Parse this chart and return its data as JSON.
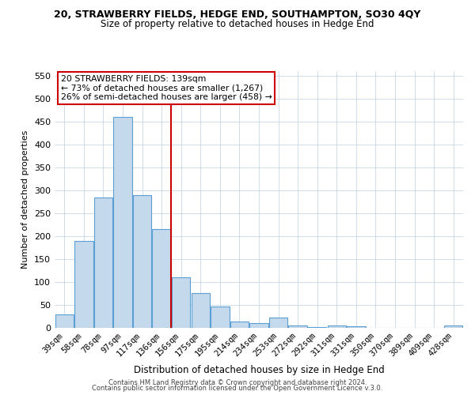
{
  "title": "20, STRAWBERRY FIELDS, HEDGE END, SOUTHAMPTON, SO30 4QY",
  "subtitle": "Size of property relative to detached houses in Hedge End",
  "xlabel": "Distribution of detached houses by size in Hedge End",
  "ylabel": "Number of detached properties",
  "bar_labels": [
    "39sqm",
    "58sqm",
    "78sqm",
    "97sqm",
    "117sqm",
    "136sqm",
    "156sqm",
    "175sqm",
    "195sqm",
    "214sqm",
    "234sqm",
    "253sqm",
    "272sqm",
    "292sqm",
    "311sqm",
    "331sqm",
    "350sqm",
    "370sqm",
    "389sqm",
    "409sqm",
    "428sqm"
  ],
  "bar_values": [
    30,
    190,
    285,
    460,
    290,
    215,
    110,
    75,
    47,
    13,
    10,
    22,
    5,
    2,
    5,
    3,
    0,
    0,
    0,
    0,
    5
  ],
  "bar_color": "#c5d9ed",
  "bar_edge_color": "#5a9fd4",
  "vline_x": 5.5,
  "vline_color": "#cc0000",
  "annotation_line1": "20 STRAWBERRY FIELDS: 139sqm",
  "annotation_line2": "← 73% of detached houses are smaller (1,267)",
  "annotation_line3": "26% of semi-detached houses are larger (458) →",
  "annotation_box_edgecolor": "#cc0000",
  "ylim": [
    0,
    560
  ],
  "yticks": [
    0,
    50,
    100,
    150,
    200,
    250,
    300,
    350,
    400,
    450,
    500,
    550
  ],
  "footer1": "Contains HM Land Registry data © Crown copyright and database right 2024.",
  "footer2": "Contains public sector information licensed under the Open Government Licence v.3.0.",
  "bg_color": "#ffffff",
  "grid_color": "#c8d8e8",
  "title_fontsize": 9,
  "subtitle_fontsize": 8.5,
  "xlabel_fontsize": 8.5,
  "ylabel_fontsize": 8,
  "tick_fontsize": 7.5,
  "footer_fontsize": 6,
  "annot_fontsize": 7.8
}
